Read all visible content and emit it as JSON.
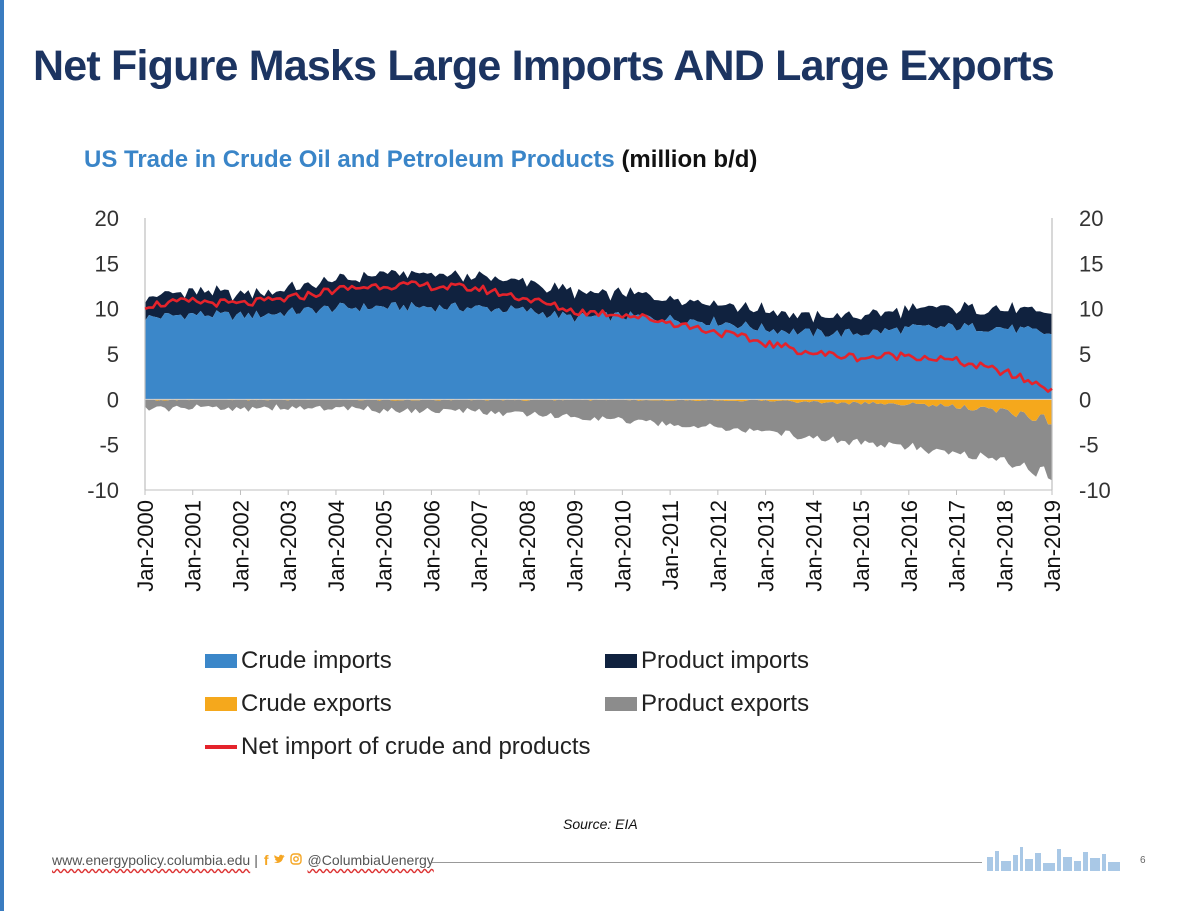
{
  "slide": {
    "title": "Net Figure Masks Large Imports AND Large Exports",
    "subtitle_main": "US Trade in Crude Oil and Petroleum Products",
    "subtitle_unit": "(million b/d)",
    "source": "Source: EIA",
    "footer_url": "www.energypolicy.columbia.edu",
    "footer_sep": "|",
    "footer_handle": "@ColumbiaUenergy",
    "page_number": "6",
    "social_icons": [
      "facebook-icon",
      "twitter-icon",
      "instagram-icon"
    ]
  },
  "chart_data": {
    "type": "area",
    "title": "US Trade in Crude Oil and Petroleum Products (million b/d)",
    "xlabel": "",
    "ylabel": "million b/d",
    "ylim": [
      -10,
      20
    ],
    "yticks": [
      "20",
      "15",
      "10",
      "5",
      "0",
      "-5",
      "-10"
    ],
    "categories": [
      "Jan-2000",
      "Jan-2001",
      "Jan-2002",
      "Jan-2003",
      "Jan-2004",
      "Jan-2005",
      "Jan-2006",
      "Jan-2007",
      "Jan-2008",
      "Jan-2009",
      "Jan-2010",
      "Jan-2011",
      "Jan-2012",
      "Jan-2013",
      "Jan-2014",
      "Jan-2015",
      "Jan-2016",
      "Jan-2017",
      "Jan-2018",
      "Jan-2019"
    ],
    "series": [
      {
        "name": "Crude imports",
        "color": "#3b87c9",
        "stack": "positive",
        "values": [
          9.0,
          9.4,
          9.2,
          9.6,
          10.1,
          10.2,
          10.2,
          10.1,
          9.8,
          9.0,
          9.2,
          8.9,
          8.6,
          7.8,
          7.3,
          7.3,
          7.8,
          8.0,
          7.9,
          7.2
        ]
      },
      {
        "name": "Product imports",
        "color": "#10223f",
        "stack": "positive",
        "values": [
          2.3,
          2.5,
          2.4,
          2.6,
          3.0,
          3.6,
          3.6,
          3.4,
          3.1,
          2.7,
          2.5,
          2.4,
          2.1,
          2.0,
          1.8,
          1.9,
          2.1,
          2.1,
          2.1,
          2.2
        ]
      },
      {
        "name": "Crude exports",
        "color": "#f5a81c",
        "stack": "negative",
        "values": [
          0.05,
          0.02,
          0.01,
          0.01,
          0.03,
          0.03,
          0.03,
          0.03,
          0.03,
          0.04,
          0.04,
          0.05,
          0.07,
          0.12,
          0.3,
          0.45,
          0.5,
          0.8,
          1.3,
          2.3
        ]
      },
      {
        "name": "Product exports",
        "color": "#8c8c8c",
        "stack": "negative",
        "values": [
          1.0,
          0.9,
          0.9,
          0.9,
          1.0,
          1.1,
          1.2,
          1.3,
          1.6,
          1.9,
          2.2,
          2.7,
          3.0,
          3.4,
          3.9,
          4.3,
          4.7,
          5.1,
          5.6,
          6.0
        ]
      },
      {
        "name": "Net import of crude and products",
        "color": "#e4232b",
        "type": "line",
        "values": [
          10.4,
          10.8,
          10.5,
          11.1,
          12.1,
          12.6,
          12.5,
          12.2,
          11.1,
          9.7,
          9.4,
          8.5,
          7.4,
          6.2,
          5.1,
          4.6,
          4.9,
          4.2,
          3.0,
          1.1
        ]
      }
    ],
    "legend": [
      {
        "name": "Crude imports",
        "color": "#3b87c9",
        "kind": "box"
      },
      {
        "name": "Product imports",
        "color": "#10223f",
        "kind": "box"
      },
      {
        "name": "Crude exports",
        "color": "#f5a81c",
        "kind": "box"
      },
      {
        "name": "Product exports",
        "color": "#8c8c8c",
        "kind": "box"
      },
      {
        "name": "Net import of crude and products",
        "color": "#e4232b",
        "kind": "line"
      }
    ],
    "legend_position": "bottom"
  }
}
